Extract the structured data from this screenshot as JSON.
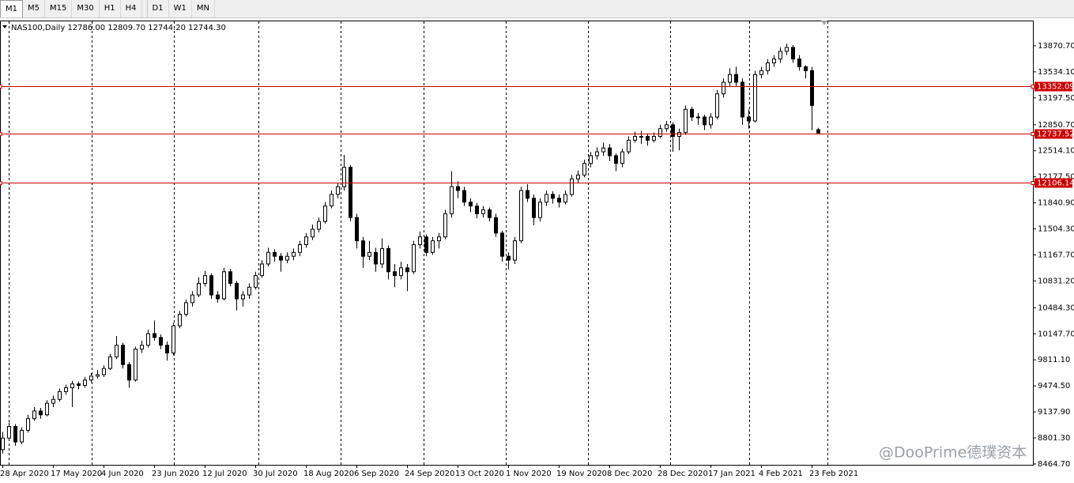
{
  "toolbar": {
    "timeframes": [
      "M1",
      "M5",
      "M15",
      "M30",
      "H1",
      "H4",
      "D1",
      "W1",
      "MN"
    ]
  },
  "watermark": "@DooPrime德璞资本",
  "chart_data": {
    "type": "candlestick",
    "title": "NAS100,Daily",
    "last_bar_labels": [
      "12786.00",
      "12809.70",
      "12744.20",
      "12744.30"
    ],
    "ylim": [
      8454,
      14187
    ],
    "yticks": [
      {
        "value": 13870.7,
        "label": "13870.70"
      },
      {
        "value": 13534.1,
        "label": "13534.10"
      },
      {
        "value": 13197.5,
        "label": "13197.50"
      },
      {
        "value": 12850.7,
        "label": "12850.70"
      },
      {
        "value": 12514.1,
        "label": "12514.10"
      },
      {
        "value": 12177.5,
        "label": "12177.50"
      },
      {
        "value": 11840.9,
        "label": "11840.90"
      },
      {
        "value": 11504.3,
        "label": "11504.30"
      },
      {
        "value": 11167.7,
        "label": "11167.70"
      },
      {
        "value": 10831.2,
        "label": "10831.20"
      },
      {
        "value": 10484.3,
        "label": "10484.30"
      },
      {
        "value": 10147.7,
        "label": "10147.70"
      },
      {
        "value": 9811.1,
        "label": "9811.10"
      },
      {
        "value": 9474.5,
        "label": "9474.50"
      },
      {
        "value": 9137.9,
        "label": "9137.90"
      },
      {
        "value": 8801.3,
        "label": "8801.30"
      },
      {
        "value": 8464.7,
        "label": "8464.70"
      }
    ],
    "xticks": [
      {
        "value": 0,
        "label": "28 Apr 2020"
      },
      {
        "value": 8,
        "label": "17 May 2020"
      },
      {
        "value": 16,
        "label": "4 Jun 2020"
      },
      {
        "value": 24,
        "label": "23 Jun 2020"
      },
      {
        "value": 32,
        "label": "12 Jul 2020"
      },
      {
        "value": 40,
        "label": "30 Jul 2020"
      },
      {
        "value": 48,
        "label": "18 Aug 2020"
      },
      {
        "value": 56,
        "label": "6 Sep 2020"
      },
      {
        "value": 64,
        "label": "24 Sep 2020"
      },
      {
        "value": 72,
        "label": "13 Oct 2020"
      },
      {
        "value": 80,
        "label": "1 Nov 2020"
      },
      {
        "value": 88,
        "label": "19 Nov 2020"
      },
      {
        "value": 96,
        "label": "8 Dec 2020"
      },
      {
        "value": 104,
        "label": "28 Dec 2020"
      },
      {
        "value": 112,
        "label": "17 Jan 2021"
      },
      {
        "value": 120,
        "label": "4 Feb 2021"
      },
      {
        "value": 128,
        "label": "23 Feb 2021"
      }
    ],
    "hlines": [
      {
        "value": 13352.09,
        "color": "#cc0000"
      },
      {
        "value": 12737.52,
        "color": "#cc0000"
      },
      {
        "value": 12106.14,
        "color": "#cc0000"
      }
    ],
    "bull_color": "#ffffff",
    "bear_color": "#000000",
    "line_color": "#000000",
    "candles": [
      [
        8650,
        8880,
        8600,
        8800
      ],
      [
        8800,
        9000,
        8760,
        8950
      ],
      [
        8950,
        8980,
        8700,
        8750
      ],
      [
        8750,
        8940,
        8720,
        8900
      ],
      [
        8900,
        9100,
        8870,
        9050
      ],
      [
        9050,
        9200,
        9020,
        9150
      ],
      [
        9150,
        9190,
        9050,
        9100
      ],
      [
        9100,
        9290,
        9080,
        9250
      ],
      [
        9250,
        9350,
        9200,
        9300
      ],
      [
        9300,
        9440,
        9270,
        9400
      ],
      [
        9400,
        9490,
        9360,
        9450
      ],
      [
        9450,
        9540,
        9200,
        9500
      ],
      [
        9500,
        9530,
        9430,
        9480
      ],
      [
        9480,
        9590,
        9450,
        9550
      ],
      [
        9550,
        9640,
        9520,
        9600
      ],
      [
        9600,
        9680,
        9570,
        9620
      ],
      [
        9620,
        9740,
        9590,
        9700
      ],
      [
        9700,
        9890,
        9680,
        9850
      ],
      [
        9850,
        10120,
        9820,
        10000
      ],
      [
        10000,
        10030,
        9700,
        9750
      ],
      [
        9750,
        9780,
        9450,
        9550
      ],
      [
        9550,
        9980,
        9530,
        9950
      ],
      [
        9950,
        10060,
        9900,
        10000
      ],
      [
        10000,
        10200,
        9970,
        10150
      ],
      [
        10150,
        10320,
        10060,
        10100
      ],
      [
        10100,
        10140,
        9950,
        10000
      ],
      [
        10000,
        10050,
        9800,
        9900
      ],
      [
        9900,
        10290,
        9870,
        10250
      ],
      [
        10250,
        10440,
        10220,
        10400
      ],
      [
        10400,
        10590,
        10370,
        10550
      ],
      [
        10550,
        10700,
        10500,
        10650
      ],
      [
        10650,
        10880,
        10620,
        10800
      ],
      [
        10800,
        10960,
        10760,
        10900
      ],
      [
        10900,
        10930,
        10600,
        10650
      ],
      [
        10650,
        10700,
        10550,
        10600
      ],
      [
        10600,
        11000,
        10580,
        10950
      ],
      [
        10950,
        10990,
        10760,
        10800
      ],
      [
        10800,
        10830,
        10450,
        10600
      ],
      [
        10600,
        10700,
        10500,
        10650
      ],
      [
        10650,
        10800,
        10600,
        10750
      ],
      [
        10750,
        10950,
        10720,
        10900
      ],
      [
        10900,
        11100,
        10870,
        11050
      ],
      [
        11050,
        11260,
        11020,
        11200
      ],
      [
        11200,
        11240,
        11080,
        11150
      ],
      [
        11150,
        11190,
        10950,
        11100
      ],
      [
        11100,
        11200,
        11060,
        11150
      ],
      [
        11150,
        11250,
        11100,
        11200
      ],
      [
        11200,
        11350,
        11150,
        11300
      ],
      [
        11300,
        11450,
        11260,
        11400
      ],
      [
        11400,
        11560,
        11360,
        11500
      ],
      [
        11500,
        11650,
        11460,
        11600
      ],
      [
        11600,
        11850,
        11570,
        11800
      ],
      [
        11800,
        12000,
        11770,
        11950
      ],
      [
        11950,
        12100,
        11900,
        12050
      ],
      [
        12050,
        12460,
        12000,
        12300
      ],
      [
        12300,
        12330,
        11600,
        11650
      ],
      [
        11650,
        11700,
        11250,
        11350
      ],
      [
        11350,
        11400,
        11000,
        11150
      ],
      [
        11150,
        11350,
        11100,
        11200
      ],
      [
        11200,
        11260,
        10950,
        11050
      ],
      [
        11050,
        11380,
        11000,
        11250
      ],
      [
        11250,
        11290,
        10850,
        10950
      ],
      [
        10950,
        11050,
        10750,
        10900
      ],
      [
        10900,
        11080,
        10850,
        11000
      ],
      [
        11000,
        11050,
        10700,
        10950
      ],
      [
        10950,
        11350,
        10920,
        11300
      ],
      [
        11300,
        11470,
        11250,
        11400
      ],
      [
        11400,
        11430,
        11150,
        11200
      ],
      [
        11200,
        11400,
        11170,
        11350
      ],
      [
        11350,
        11450,
        11250,
        11400
      ],
      [
        11400,
        11750,
        11370,
        11700
      ],
      [
        11700,
        12250,
        11650,
        12050
      ],
      [
        12050,
        12120,
        11900,
        12000
      ],
      [
        12000,
        12050,
        11800,
        11850
      ],
      [
        11850,
        11900,
        11720,
        11800
      ],
      [
        11800,
        11840,
        11640,
        11700
      ],
      [
        11700,
        11800,
        11650,
        11750
      ],
      [
        11750,
        11780,
        11600,
        11650
      ],
      [
        11650,
        11700,
        11400,
        11450
      ],
      [
        11450,
        11480,
        11080,
        11150
      ],
      [
        11150,
        11200,
        10980,
        11100
      ],
      [
        11100,
        11400,
        11050,
        11350
      ],
      [
        11350,
        12050,
        11320,
        12000
      ],
      [
        12000,
        12080,
        11850,
        11900
      ],
      [
        11900,
        11950,
        11550,
        11650
      ],
      [
        11650,
        11900,
        11600,
        11850
      ],
      [
        11850,
        12000,
        11800,
        11950
      ],
      [
        11950,
        11990,
        11830,
        11900
      ],
      [
        11900,
        11950,
        11780,
        11850
      ],
      [
        11850,
        12000,
        11820,
        11950
      ],
      [
        11950,
        12200,
        11920,
        12150
      ],
      [
        12150,
        12260,
        12100,
        12200
      ],
      [
        12200,
        12400,
        12170,
        12350
      ],
      [
        12350,
        12500,
        12300,
        12450
      ],
      [
        12450,
        12560,
        12400,
        12500
      ],
      [
        12500,
        12620,
        12450,
        12550
      ],
      [
        12550,
        12600,
        12380,
        12450
      ],
      [
        12450,
        12480,
        12250,
        12350
      ],
      [
        12350,
        12540,
        12300,
        12500
      ],
      [
        12500,
        12700,
        12470,
        12650
      ],
      [
        12650,
        12760,
        12620,
        12700
      ],
      [
        12700,
        12770,
        12600,
        12700
      ],
      [
        12700,
        12740,
        12580,
        12650
      ],
      [
        12650,
        12750,
        12620,
        12700
      ],
      [
        12700,
        12850,
        12680,
        12800
      ],
      [
        12800,
        12900,
        12760,
        12850
      ],
      [
        12850,
        12880,
        12500,
        12700
      ],
      [
        12700,
        12800,
        12520,
        12750
      ],
      [
        12750,
        13100,
        12720,
        13050
      ],
      [
        13050,
        13080,
        12900,
        12950
      ],
      [
        12950,
        13000,
        12850,
        12950
      ],
      [
        12950,
        12980,
        12780,
        12850
      ],
      [
        12850,
        13000,
        12800,
        12950
      ],
      [
        12950,
        13300,
        12920,
        13250
      ],
      [
        13250,
        13450,
        13200,
        13400
      ],
      [
        13400,
        13580,
        13350,
        13500
      ],
      [
        13500,
        13600,
        13350,
        13400
      ],
      [
        13400,
        13450,
        12850,
        12950
      ],
      [
        12950,
        13050,
        12800,
        12900
      ],
      [
        12900,
        13550,
        12880,
        13500
      ],
      [
        13500,
        13600,
        13450,
        13550
      ],
      [
        13550,
        13700,
        13500,
        13650
      ],
      [
        13650,
        13750,
        13600,
        13700
      ],
      [
        13700,
        13850,
        13650,
        13800
      ],
      [
        13800,
        13900,
        13750,
        13850
      ],
      [
        13850,
        13880,
        13650,
        13700
      ],
      [
        13700,
        13750,
        13550,
        13600
      ],
      [
        13600,
        13620,
        13450,
        13550
      ],
      [
        13550,
        13600,
        12780,
        13100
      ],
      [
        12786,
        12809.7,
        12744.2,
        12744.3
      ]
    ]
  }
}
